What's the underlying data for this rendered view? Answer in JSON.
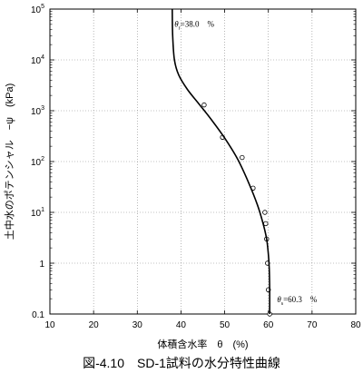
{
  "chart_data": {
    "type": "line",
    "title": "",
    "caption": "図-4.10　SD-1試料の水分特性曲線",
    "xlabel": "体積含水率　θ　(%)",
    "ylabel": "土中水のポテンシャル　−ψ　(kPa)",
    "xlim": [
      10,
      80
    ],
    "ylim": [
      0.1,
      100000
    ],
    "yscale": "log",
    "grid": "dotted",
    "x_ticks": [
      10,
      20,
      30,
      40,
      50,
      60,
      70,
      80
    ],
    "y_ticks": [
      {
        "value": 0.1,
        "label": "0.1",
        "base": "",
        "exp": ""
      },
      {
        "value": 1,
        "label": "1",
        "base": "",
        "exp": ""
      },
      {
        "value": 10,
        "label": "",
        "base": "10",
        "exp": "1"
      },
      {
        "value": 100,
        "label": "",
        "base": "10",
        "exp": "2"
      },
      {
        "value": 1000,
        "label": "",
        "base": "10",
        "exp": "3"
      },
      {
        "value": 10000,
        "label": "",
        "base": "10",
        "exp": "4"
      },
      {
        "value": 100000,
        "label": "",
        "base": "10",
        "exp": "5"
      }
    ],
    "series": [
      {
        "kind": "points",
        "marker": "open-circle",
        "x": [
          45.3,
          49.5,
          54.0,
          56.5,
          59.2,
          59.4,
          59.6,
          59.8,
          60.0,
          60.3
        ],
        "y": [
          1300,
          300,
          120,
          30,
          10,
          6,
          3,
          1,
          0.3,
          0.1
        ]
      },
      {
        "kind": "curve",
        "marker": "none",
        "x": [
          38.0,
          38.1,
          38.5,
          39.5,
          41.5,
          44.0,
          47.0,
          50.0,
          53.0,
          55.5,
          57.5,
          58.8,
          59.6,
          60.0,
          60.2,
          60.3,
          60.3
        ],
        "y": [
          100000,
          30000,
          10000,
          5000,
          2600,
          1400,
          660,
          290,
          110,
          38,
          14,
          6,
          3,
          1.5,
          0.8,
          0.3,
          0.1
        ]
      }
    ],
    "annotations": [
      {
        "symbol": "θ",
        "subscript": "r",
        "text": "=38.0　%",
        "x": 38.5,
        "y": 45000
      },
      {
        "symbol": "θ",
        "subscript": "s",
        "text": "=60.3　%",
        "x": 62,
        "y": 0.17
      }
    ]
  }
}
